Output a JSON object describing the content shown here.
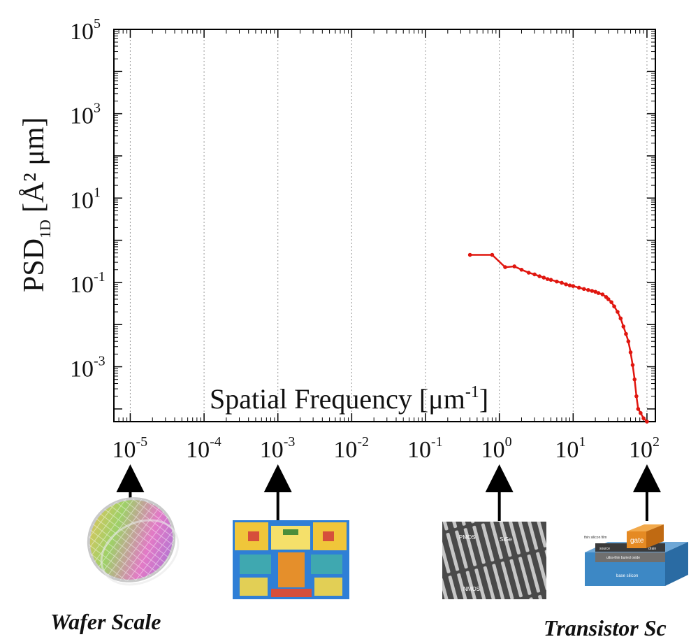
{
  "chart_data": {
    "type": "line",
    "title": "",
    "xlabel": "Spatial Frequency [μm",
    "xlabel_sup": "-1",
    "xlabel_end": "]",
    "ylabel": "PSD",
    "ylabel_sub": "1D",
    "ylabel_end": "[Å² μm]",
    "xscale": "log",
    "yscale": "log",
    "xlim": [
      6e-06,
      130
    ],
    "ylim": [
      5e-05,
      100000
    ],
    "grid": "x-major dotted",
    "x_ticks": [
      {
        "base": "10",
        "exp": "-5",
        "value": 1e-05
      },
      {
        "base": "10",
        "exp": "-4",
        "value": 0.0001
      },
      {
        "base": "10",
        "exp": "-3",
        "value": 0.001
      },
      {
        "base": "10",
        "exp": "-2",
        "value": 0.01
      },
      {
        "base": "10",
        "exp": "-1",
        "value": 0.1
      },
      {
        "base": "10",
        "exp": "0",
        "value": 1
      },
      {
        "base": "10",
        "exp": "1",
        "value": 10
      },
      {
        "base": "10",
        "exp": "2",
        "value": 100
      }
    ],
    "y_ticks": [
      {
        "base": "10",
        "exp": "5",
        "value": 100000
      },
      {
        "base": "10",
        "exp": "3",
        "value": 1000
      },
      {
        "base": "10",
        "exp": "1",
        "value": 10
      },
      {
        "base": "10",
        "exp": "-1",
        "value": 0.1
      },
      {
        "base": "10",
        "exp": "-3",
        "value": 0.001
      }
    ],
    "series": [
      {
        "name": "PSD",
        "color": "#e0160f",
        "points": [
          [
            0.4,
            0.45
          ],
          [
            0.8,
            0.45
          ],
          [
            1.2,
            0.23
          ],
          [
            1.6,
            0.24
          ],
          [
            2.0,
            0.2
          ],
          [
            2.5,
            0.17
          ],
          [
            3.0,
            0.155
          ],
          [
            3.5,
            0.14
          ],
          [
            4.0,
            0.13
          ],
          [
            4.5,
            0.12
          ],
          [
            5.0,
            0.115
          ],
          [
            6.0,
            0.105
          ],
          [
            7.0,
            0.098
          ],
          [
            8.0,
            0.09
          ],
          [
            9.0,
            0.085
          ],
          [
            10.0,
            0.082
          ],
          [
            12.0,
            0.075
          ],
          [
            14.0,
            0.07
          ],
          [
            16.0,
            0.066
          ],
          [
            18.0,
            0.063
          ],
          [
            20.0,
            0.06
          ],
          [
            22.0,
            0.056
          ],
          [
            25.0,
            0.052
          ],
          [
            28.0,
            0.045
          ],
          [
            30.0,
            0.04
          ],
          [
            33.0,
            0.034
          ],
          [
            36.0,
            0.027
          ],
          [
            40.0,
            0.02
          ],
          [
            44.0,
            0.014
          ],
          [
            48.0,
            0.009
          ],
          [
            52.0,
            0.006
          ],
          [
            56.0,
            0.004
          ],
          [
            60.0,
            0.0022
          ],
          [
            64.0,
            0.0011
          ],
          [
            68.0,
            0.0005
          ],
          [
            72.0,
            0.0002
          ],
          [
            76.0,
            0.0001
          ],
          [
            82.0,
            8e-05
          ],
          [
            90.0,
            6e-05
          ],
          [
            100.0,
            5e-05
          ]
        ]
      }
    ]
  },
  "scale_annotations": [
    {
      "name": "wafer",
      "x_value": 1e-05,
      "caption": "Wafer Scale"
    },
    {
      "name": "die",
      "x_value": 0.001,
      "caption": ""
    },
    {
      "name": "sem",
      "x_value": 1,
      "caption": "",
      "labels": {
        "pmos": "PMOS",
        "sige": "SiGe",
        "nmos": "NMOS"
      }
    },
    {
      "name": "transistor",
      "x_value": 100,
      "caption": "Transistor Sc",
      "labels": {
        "gate": "gate",
        "film": "thin silicon film",
        "oxide": "ultra-thin buried oxide",
        "base": "base silicon",
        "drain": "drain",
        "source": "source"
      }
    }
  ],
  "colors": {
    "series": "#e0160f",
    "axis": "#000000",
    "grid": "#999999"
  }
}
